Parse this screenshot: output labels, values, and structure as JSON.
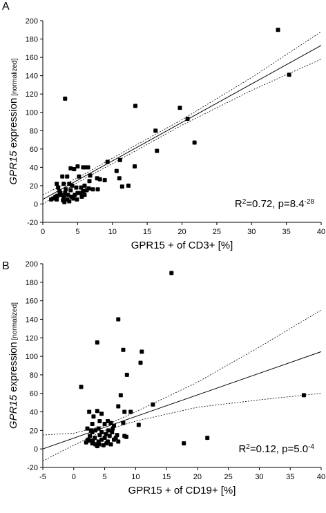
{
  "chart_data": [
    {
      "type": "scatter",
      "label": "A",
      "ylabel": [
        {
          "text": "GPR15",
          "style": "italic"
        },
        {
          "text": " expression"
        },
        {
          "text": " [normalized]",
          "size": "small"
        }
      ],
      "xlabel": "GPR15 + of CD3+ [%]",
      "annotation": [
        {
          "text": "R"
        },
        {
          "text": "2",
          "sup": true
        },
        {
          "text": "=0.72, p=8.4"
        },
        {
          "text": "-28",
          "sup": true
        }
      ],
      "xlim": [
        0,
        40
      ],
      "ylim": [
        -20,
        200
      ],
      "xticks": [
        0,
        5,
        10,
        15,
        20,
        25,
        30,
        35,
        40
      ],
      "yticks": [
        -20,
        0,
        20,
        40,
        60,
        80,
        100,
        120,
        140,
        160,
        180,
        200
      ],
      "color": "#000000",
      "points": {
        "x": [
          33.8,
          35.4,
          3.2,
          13.3,
          19.7,
          20.8,
          16.2,
          21.8,
          16.4,
          11.1,
          9.3,
          13.2,
          10.6,
          11.0,
          12.3,
          11.4,
          8.9,
          8.2,
          7.8,
          7.2,
          7.9,
          6.1,
          6.5,
          5.8,
          5.0,
          4.5,
          4.0,
          6.8,
          6.7,
          5.2,
          6.0,
          5.5,
          3.5,
          2.8,
          2.0,
          2.2,
          3.0,
          3.8,
          4.2,
          4.8,
          4.0,
          3.2,
          2.5,
          1.8,
          1.5,
          2.0,
          2.6,
          3.0,
          3.5,
          3.8,
          4.1,
          4.6,
          5.0,
          5.4,
          5.8,
          6.3,
          6.6,
          3.3,
          2.4,
          2.9,
          3.6,
          4.4,
          1.2,
          2.1,
          3.1,
          4.9,
          5.6,
          6.0
        ],
        "values": [
          190,
          141,
          115,
          107,
          105,
          93,
          80,
          67,
          58,
          48,
          46,
          41,
          36,
          28,
          20,
          19,
          26,
          27,
          28,
          16,
          16,
          40,
          40,
          40,
          41,
          38,
          39,
          31,
          25,
          30,
          20,
          18,
          30,
          30,
          22,
          18,
          22,
          22,
          20,
          18,
          15,
          12,
          12,
          8,
          6,
          5,
          10,
          8,
          5,
          3,
          8,
          10,
          12,
          12,
          14,
          15,
          17,
          16,
          14,
          4,
          10,
          6,
          5,
          9,
          2,
          5,
          8,
          10
        ]
      },
      "fit": {
        "x": [
          0,
          40
        ],
        "values": [
          5,
          173
        ]
      },
      "ci_upper": {
        "x": [
          0,
          5,
          10,
          20,
          30,
          40
        ],
        "values": [
          10,
          28.5,
          50,
          92,
          138,
          188
        ]
      },
      "ci_lower": {
        "x": [
          0,
          5,
          10,
          20,
          30,
          40
        ],
        "values": [
          0,
          23.5,
          44,
          86,
          124,
          158
        ]
      }
    },
    {
      "type": "scatter",
      "label": "B",
      "ylabel": [
        {
          "text": "GPR15",
          "style": "italic"
        },
        {
          "text": " expression"
        },
        {
          "text": " [normalized]",
          "size": "small"
        }
      ],
      "xlabel": "GPR15 + of CD19+ [%]",
      "annotation": [
        {
          "text": "R"
        },
        {
          "text": "2",
          "sup": true
        },
        {
          "text": "=0.12, p=5.0"
        },
        {
          "text": "-4",
          "sup": true
        }
      ],
      "xlim": [
        -5,
        40
      ],
      "ylim": [
        -20,
        200
      ],
      "xticks": [
        -5,
        0,
        5,
        10,
        15,
        20,
        25,
        30,
        35,
        40
      ],
      "yticks": [
        -20,
        0,
        20,
        40,
        60,
        80,
        100,
        120,
        140,
        160,
        180,
        200
      ],
      "color": "#000000",
      "points": {
        "x": [
          15.8,
          7.2,
          3.8,
          8.0,
          11.0,
          10.8,
          8.6,
          1.2,
          7.6,
          12.8,
          37.2,
          21.6,
          17.8,
          2.5,
          3.8,
          3.2,
          7.2,
          8.2,
          9.2,
          10.5,
          8.0,
          8.5,
          8.2,
          4.5,
          4.2,
          5.0,
          5.5,
          6.0,
          6.5,
          3.0,
          2.8,
          2.2,
          3.5,
          4.5,
          5.2,
          6.2,
          3.0,
          4.0,
          2.5,
          2.0,
          3.0,
          3.5,
          4.0,
          4.5,
          5.0,
          5.5,
          6.0,
          6.5,
          7.0,
          7.2,
          2.6,
          3.4,
          4.2,
          5.6,
          6.3,
          3.8,
          4.8,
          5.3,
          2.3,
          6.8,
          3.1,
          4.1,
          5.8
        ],
        "values": [
          190,
          140,
          115,
          107,
          105,
          93,
          80,
          67,
          58,
          48,
          58,
          12,
          6,
          40,
          41,
          35,
          46,
          40,
          40,
          26,
          28,
          13,
          14,
          38,
          30,
          27,
          30,
          28,
          25,
          27,
          20,
          22,
          20,
          18,
          16,
          18,
          18,
          22,
          9,
          7,
          6,
          5,
          8,
          10,
          12,
          8,
          5,
          10,
          15,
          8,
          14,
          12,
          15,
          20,
          22,
          3,
          4,
          6,
          10,
          12,
          9,
          5,
          14
        ]
      },
      "fit": {
        "x": [
          -5,
          40
        ],
        "values": [
          0,
          105
        ]
      },
      "ci_upper": {
        "x": [
          -5,
          0,
          5,
          10,
          20,
          30,
          40
        ],
        "values": [
          15,
          17,
          25,
          40,
          72,
          110,
          150
        ]
      },
      "ci_lower": {
        "x": [
          -5,
          0,
          5,
          10,
          20,
          30,
          40
        ],
        "values": [
          -13,
          4,
          20,
          30,
          45,
          53,
          60
        ]
      }
    }
  ]
}
